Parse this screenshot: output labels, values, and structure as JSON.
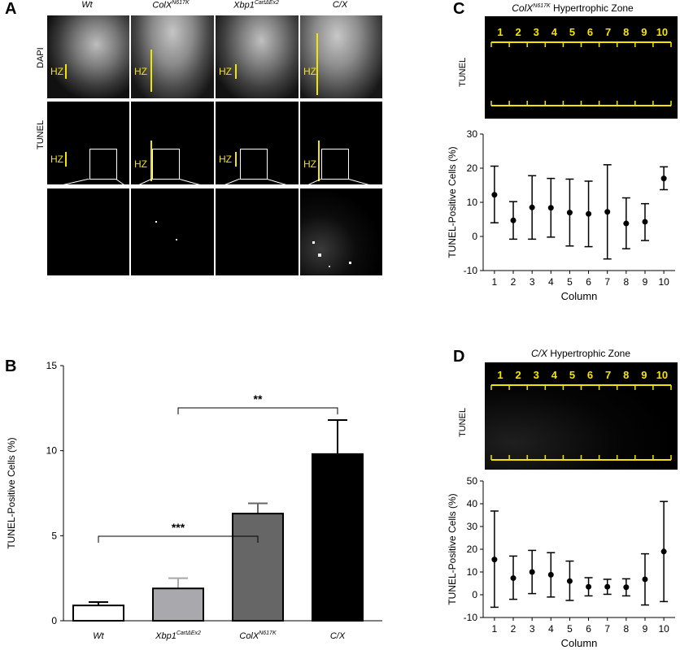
{
  "panels": {
    "A": {
      "label": "A",
      "columns": [
        "Wt",
        "ColX",
        "Xbp1",
        "C/X"
      ],
      "column_sup": [
        "",
        "N617K",
        "CartΔEx2",
        ""
      ],
      "rows": [
        "DAPI",
        "TUNEL"
      ],
      "hz_label": "HZ"
    },
    "B": {
      "label": "B"
    },
    "C": {
      "label": "C",
      "title_main": "ColX",
      "title_sup": "N617K",
      "title_rest": " Hypertrophic Zone",
      "row_label": "TUNEL",
      "column_numbers": [
        "1",
        "2",
        "3",
        "4",
        "5",
        "6",
        "7",
        "8",
        "9",
        "10"
      ]
    },
    "D": {
      "label": "D",
      "title_main": "C/X",
      "title_rest": " Hypertrophic Zone",
      "row_label": "TUNEL",
      "column_numbers": [
        "1",
        "2",
        "3",
        "4",
        "5",
        "6",
        "7",
        "8",
        "9",
        "10"
      ]
    }
  },
  "colors": {
    "highlight": "#f5e400",
    "bar_dark_gray": "#666666",
    "bar_light_gray": "#a8a8ad"
  },
  "chart_data": [
    {
      "id": "B",
      "type": "bar",
      "categories": [
        "Wt",
        "Xbp1",
        "ColX",
        "C/X"
      ],
      "category_sup": [
        "",
        "CartΔEx2",
        "N617K",
        ""
      ],
      "values": [
        0.9,
        1.9,
        6.3,
        9.8
      ],
      "errors": [
        0.2,
        0.6,
        0.6,
        2.0
      ],
      "bar_colors": [
        "#ffffff",
        "#a8a8ad",
        "#666666",
        "#000000"
      ],
      "ylabel": "TUNEL-Positive Cells (%)",
      "ylim": [
        0,
        15
      ],
      "yticks": [
        0,
        5,
        10,
        15
      ],
      "significance": [
        {
          "from": "Wt",
          "to": "ColX",
          "text": "***"
        },
        {
          "from": "Xbp1",
          "to": "C/X",
          "text": "**"
        }
      ]
    },
    {
      "id": "C",
      "type": "scatter",
      "x": [
        1,
        2,
        3,
        4,
        5,
        6,
        7,
        8,
        9,
        10
      ],
      "values": [
        12.2,
        4.7,
        8.5,
        8.4,
        7.0,
        6.6,
        7.2,
        3.8,
        4.3,
        17.0
      ],
      "lower": [
        4.0,
        -0.8,
        -0.8,
        -0.2,
        -2.8,
        -3.0,
        -6.6,
        -3.6,
        -1.2,
        13.7
      ],
      "upper": [
        20.6,
        10.2,
        17.8,
        17.0,
        16.8,
        16.2,
        21.0,
        11.3,
        9.6,
        20.4
      ],
      "xlabel": "Column",
      "ylabel": "TUNEL-Positive Cells (%)",
      "ylim": [
        -10,
        30
      ],
      "yticks": [
        -10,
        0,
        10,
        20,
        30
      ]
    },
    {
      "id": "D",
      "type": "scatter",
      "x": [
        1,
        2,
        3,
        4,
        5,
        6,
        7,
        8,
        9,
        10
      ],
      "values": [
        15.5,
        7.3,
        10.0,
        8.8,
        6.0,
        3.5,
        3.5,
        3.3,
        6.8,
        19.0
      ],
      "lower": [
        -5.5,
        -2.0,
        0.5,
        -1.0,
        -2.5,
        -0.5,
        0.2,
        -0.5,
        -4.5,
        -3.0
      ],
      "upper": [
        36.8,
        17.0,
        19.5,
        18.5,
        14.8,
        7.5,
        6.8,
        7.0,
        18.0,
        41.0
      ],
      "xlabel": "Column",
      "ylabel": "TUNEL-Positive Cells (%)",
      "ylim": [
        -10,
        50
      ],
      "yticks": [
        -10,
        0,
        10,
        20,
        30,
        40,
        50
      ]
    }
  ]
}
